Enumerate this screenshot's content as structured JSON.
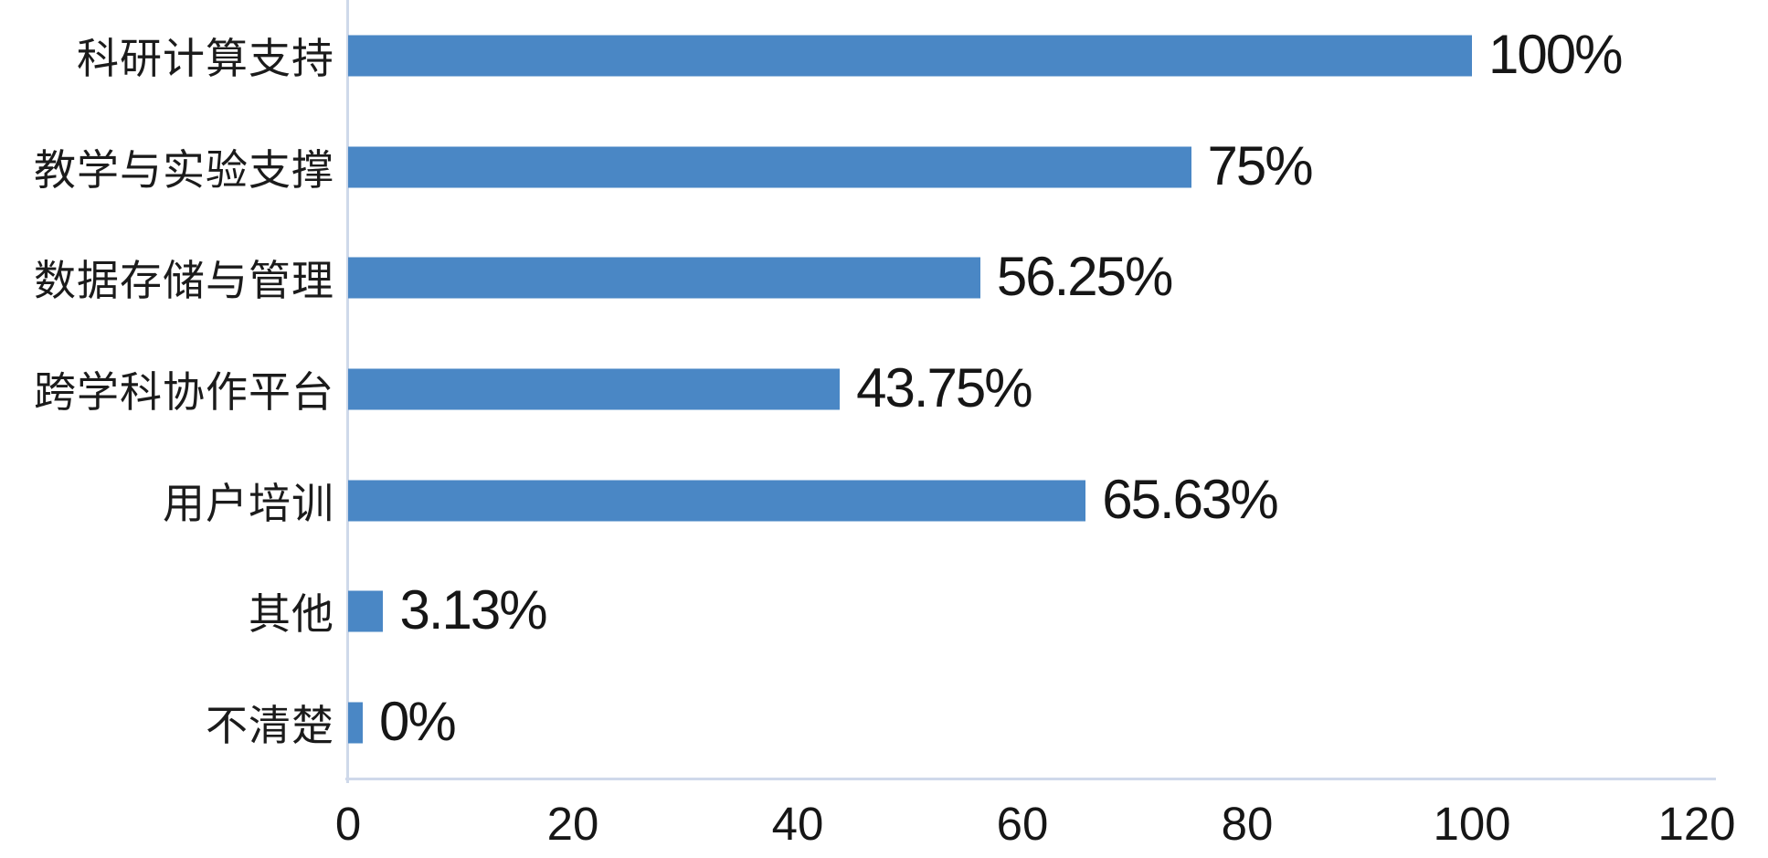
{
  "chart_data": {
    "type": "bar",
    "orientation": "horizontal",
    "title": "",
    "xlabel": "",
    "ylabel": "",
    "categories": [
      "科研计算支持",
      "教学与实验支撑",
      "数据存储与管理",
      "跨学科协作平台",
      "用户培训",
      "其他",
      "不清楚"
    ],
    "values": [
      100,
      75,
      56.25,
      43.75,
      65.63,
      3.13,
      0
    ],
    "value_labels": [
      "100%",
      "75%",
      "56.25%",
      "43.75%",
      "65.63%",
      "3.13%",
      "0%"
    ],
    "x_ticks": [
      0,
      20,
      40,
      60,
      80,
      100,
      120
    ],
    "x_tick_labels": [
      "0",
      "20",
      "40",
      "60",
      "80",
      "100",
      "120"
    ],
    "xlim": [
      0,
      120
    ],
    "grid": false,
    "legend_position": "none",
    "bar_color": "#4a87c5",
    "axis_line_color": "#cfd9ea",
    "text_color": "#161616"
  }
}
